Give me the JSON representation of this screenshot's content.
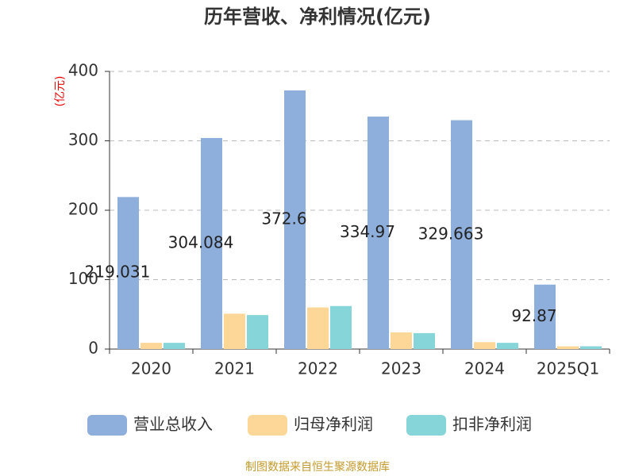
{
  "chart_data": {
    "type": "bar",
    "title": "历年营收、净利情况(亿元)",
    "y_label": "(亿元)",
    "source": "制图数据来自恒生聚源数据库",
    "categories": [
      "2020",
      "2021",
      "2022",
      "2023",
      "2024",
      "2025Q1"
    ],
    "series": [
      {
        "name": "营业总收入",
        "color": "#8eaedb",
        "values": [
          219.031,
          304.084,
          372.6,
          334.97,
          329.663,
          92.87
        ],
        "show_labels": true
      },
      {
        "name": "归母净利润",
        "color": "#fdd797",
        "values": [
          9,
          51,
          60,
          24,
          10,
          4
        ]
      },
      {
        "name": "扣非净利润",
        "color": "#86d5d8",
        "values": [
          9,
          49,
          62,
          23,
          9,
          4
        ]
      }
    ],
    "ylim": [
      0,
      400
    ],
    "yticks": [
      0,
      100,
      200,
      300,
      400
    ],
    "grid": true
  }
}
